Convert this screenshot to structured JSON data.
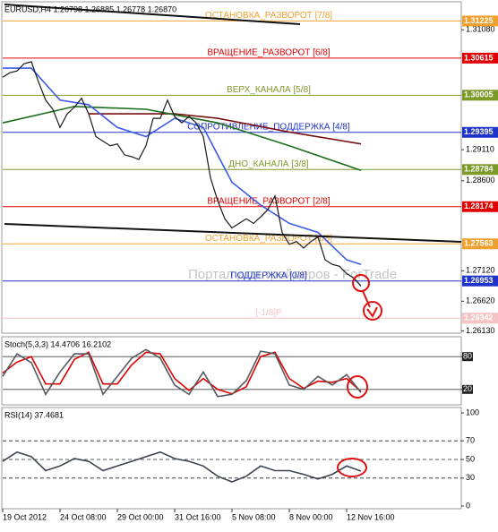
{
  "chart_data": [
    {
      "type": "line",
      "title": "EURUSD,H4  1.26798 1.26885 1.26778 1.26870",
      "watermark": "Портал для трейдеров - ForTrade",
      "xlim": [
        0,
        64
      ],
      "ylim": [
        1.26095,
        1.31305
      ],
      "yticks": [
        {
          "value": 1.3108,
          "label": "1.31080"
        },
        {
          "value": 1.2911,
          "label": "1.29110"
        },
        {
          "value": 1.286,
          "label": "1.28600"
        },
        {
          "value": 1.2712,
          "label": "1.27120"
        },
        {
          "value": 1.2662,
          "label": "1.26620"
        },
        {
          "value": 1.2613,
          "label": "1.26130"
        }
      ],
      "levels": [
        {
          "name": "ОСТАНОВКА_РАЗВОРОТ [7/8]",
          "value": 1.31225,
          "color": "#f0a030"
        },
        {
          "name": "ВРАЩЕНИЕ_РАЗВОРОТ [6/8]",
          "value": 1.30615,
          "color": "#e00000"
        },
        {
          "name": "ВЕРХ_КАНАЛА [5/8]",
          "value": 1.30005,
          "color": "#7c9a28"
        },
        {
          "name": "СОПРОТИВЛЕНИЕ_ПОДДЕРЖКА [4/8]",
          "value": 1.29395,
          "color": "#1f33c8"
        },
        {
          "name": "ДНО_КАНАЛА [3/8]",
          "value": 1.28784,
          "color": "#7c9a28"
        },
        {
          "name": "ВРАЩЕНИЕ_РАЗВОРОТ [2/8]",
          "value": 1.28174,
          "color": "#e00000"
        },
        {
          "name": "ОСТАНОВКА_РАЗВОРОТ [1/8]",
          "value": 1.27563,
          "color": "#f0a030"
        },
        {
          "name": "ПОДДЕРЖКА [0/8]",
          "value": 1.26953,
          "color": "#1f33c8"
        },
        {
          "name": "[-1/8]P",
          "value": 1.26342,
          "color": "#f6c4c4"
        }
      ],
      "series": [
        {
          "color": "#1a1a1a",
          "x": [
            0,
            1,
            2,
            3,
            4,
            5,
            6,
            7,
            8,
            9,
            10,
            11,
            12,
            13,
            14,
            15,
            16,
            17,
            18,
            19,
            20,
            21,
            22,
            23,
            24,
            25,
            26,
            27,
            28,
            29,
            30,
            31,
            32,
            33,
            34,
            35,
            36,
            37,
            38,
            39,
            40,
            41,
            42,
            43,
            44,
            45,
            46,
            47,
            48,
            49,
            50
          ],
          "values": [
            1.303,
            1.30375,
            1.30405,
            1.30525,
            1.30555,
            1.30225,
            1.29925,
            1.29775,
            1.29475,
            1.297,
            1.29805,
            1.29955,
            1.297,
            1.29325,
            1.2925,
            1.29175,
            1.29205,
            1.29025,
            1.28995,
            1.2895,
            1.29175,
            1.29625,
            1.29625,
            1.29925,
            1.29655,
            1.2955,
            1.29655,
            1.2955,
            1.29325,
            1.2865,
            1.28275,
            1.27975,
            1.27825,
            1.279,
            1.27975,
            1.279,
            1.28005,
            1.28125,
            1.2835,
            1.2775,
            1.27555,
            1.276,
            1.27495,
            1.276,
            1.27675,
            1.273,
            1.27225,
            1.27195,
            1.27075,
            1.27,
            1.2687
          ]
        },
        {
          "color": "#3a5ae8",
          "x": [
            0,
            4,
            8,
            12,
            16,
            20,
            24,
            28,
            32,
            36,
            40,
            44,
            48,
            50
          ],
          "values": [
            1.3045,
            1.3045,
            1.29925,
            1.2985,
            1.29475,
            1.29325,
            1.29625,
            1.29475,
            1.28575,
            1.282,
            1.279,
            1.2775,
            1.273,
            1.27225
          ]
        },
        {
          "color": "#1e6e1e",
          "x": [
            0,
            10,
            20,
            30,
            40,
            50
          ],
          "values": [
            1.2955,
            1.2982,
            1.29775,
            1.2955,
            1.29175,
            1.2877
          ]
        },
        {
          "color": "#7a1010",
          "x": [
            12,
            24,
            30,
            40,
            50
          ],
          "values": [
            1.297,
            1.297,
            1.29625,
            1.294,
            1.29205
          ]
        }
      ]
    },
    {
      "type": "line",
      "title": "Stoch(5,3,3) 14.4706 16.2102",
      "xlim": [
        0,
        64
      ],
      "ylim": [
        0,
        100
      ],
      "yticks": [
        80,
        20
      ],
      "series": [
        {
          "color": "#555a60",
          "x": [
            0,
            2,
            4,
            6,
            8,
            10,
            12,
            14,
            16,
            18,
            20,
            22,
            24,
            26,
            28,
            30,
            32,
            34,
            36,
            38,
            40,
            42,
            44,
            46,
            48,
            50
          ],
          "values": [
            44,
            85,
            69,
            11,
            52,
            85,
            85,
            11,
            44,
            77,
            93,
            77,
            28,
            11,
            52,
            7,
            11,
            36,
            90,
            85,
            28,
            20,
            44,
            28,
            47,
            14.4706
          ]
        },
        {
          "color": "#e00000",
          "x": [
            0,
            2,
            4,
            6,
            8,
            10,
            12,
            14,
            16,
            18,
            20,
            22,
            24,
            26,
            28,
            30,
            32,
            34,
            36,
            38,
            40,
            42,
            44,
            46,
            48,
            50
          ],
          "values": [
            50,
            70,
            80,
            30,
            30,
            75,
            88,
            30,
            30,
            65,
            88,
            85,
            40,
            18,
            40,
            20,
            12,
            25,
            80,
            88,
            40,
            22,
            35,
            33,
            40,
            16.2102
          ]
        }
      ]
    },
    {
      "type": "line",
      "title": "RSI(14) 37.4681",
      "xlim": [
        0,
        64
      ],
      "ylim": [
        0,
        100
      ],
      "yticks": [
        100,
        70,
        50,
        30,
        0
      ],
      "dashed": [
        70,
        50,
        30
      ],
      "xticks": [
        {
          "value": 0,
          "label": "19 Oct 2012"
        },
        {
          "value": 8,
          "label": "24 Oct 08:00"
        },
        {
          "value": 16,
          "label": "29 Oct 00:00"
        },
        {
          "value": 24,
          "label": "31 Oct 16:00"
        },
        {
          "value": 32,
          "label": "5 Nov 08:00"
        },
        {
          "value": 40,
          "label": "8 Nov 00:00"
        },
        {
          "value": 48,
          "label": "12 Nov 16:00"
        }
      ],
      "series": [
        {
          "color": "#3c4450",
          "x": [
            0,
            2,
            4,
            6,
            8,
            10,
            12,
            14,
            16,
            18,
            20,
            22,
            24,
            26,
            28,
            30,
            32,
            34,
            36,
            38,
            40,
            42,
            44,
            46,
            48,
            50
          ],
          "values": [
            48,
            58,
            53,
            38,
            43,
            51,
            48,
            38,
            43,
            48,
            53,
            58,
            51,
            48,
            43,
            32,
            26,
            32,
            43,
            38,
            38,
            34,
            29,
            34,
            43,
            37.4681
          ]
        }
      ]
    }
  ]
}
